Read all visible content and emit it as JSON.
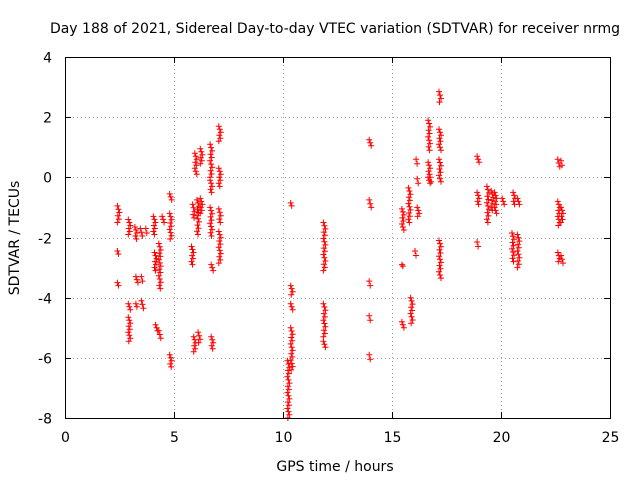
{
  "chart_data": {
    "type": "scatter",
    "title": "Day 188 of 2021, Sidereal Day-to-day VTEC variation (SDTVAR) for receiver nrmg",
    "xlabel": "GPS time / hours",
    "ylabel": "SDTVAR / TECUs",
    "xlim": [
      0,
      25
    ],
    "ylim": [
      -8,
      4
    ],
    "xticks": [
      "0",
      "5",
      "10",
      "15",
      "20",
      "25"
    ],
    "yticks": [
      "-8",
      "-6",
      "-4",
      "-2",
      "0",
      "2",
      "4"
    ],
    "xtick_values": [
      0,
      5,
      10,
      15,
      20,
      25
    ],
    "ytick_values": [
      -8,
      -6,
      -4,
      -2,
      0,
      2,
      4
    ],
    "grid": true,
    "marker": "plus",
    "color": "#ff0000",
    "segments": [
      {
        "x": 2.45,
        "y0": -1.5,
        "y1": -0.95
      },
      {
        "x": 2.45,
        "y0": -2.55,
        "y1": -2.45
      },
      {
        "x": 2.45,
        "y0": -3.6,
        "y1": -3.5
      },
      {
        "x": 2.95,
        "y0": -1.9,
        "y1": -1.4
      },
      {
        "x": 2.95,
        "y0": -4.4,
        "y1": -4.2
      },
      {
        "x": 2.95,
        "y0": -5.45,
        "y1": -4.65
      },
      {
        "x": 3.25,
        "y0": -2.05,
        "y1": -1.65
      },
      {
        "x": 3.3,
        "y0": -3.5,
        "y1": -3.3
      },
      {
        "x": 3.3,
        "y0": -4.3,
        "y1": -4.2
      },
      {
        "x": 3.5,
        "y0": -1.95,
        "y1": -1.7
      },
      {
        "x": 3.55,
        "y0": -3.45,
        "y1": -3.3
      },
      {
        "x": 3.55,
        "y0": -4.35,
        "y1": -4.1
      },
      {
        "x": 3.75,
        "y0": -1.85,
        "y1": -1.7
      },
      {
        "x": 4.1,
        "y0": -1.9,
        "y1": -1.3
      },
      {
        "x": 4.15,
        "y0": -3.1,
        "y1": -2.5
      },
      {
        "x": 4.2,
        "y0": -5.1,
        "y1": -4.9
      },
      {
        "x": 4.35,
        "y0": -3.7,
        "y1": -2.2
      },
      {
        "x": 4.35,
        "y0": -5.35,
        "y1": -5.1
      },
      {
        "x": 4.5,
        "y0": -1.5,
        "y1": -1.3
      },
      {
        "x": 4.85,
        "y0": -0.75,
        "y1": -0.55
      },
      {
        "x": 4.85,
        "y0": -2.05,
        "y1": -1.2
      },
      {
        "x": 4.85,
        "y0": -6.3,
        "y1": -5.9
      },
      {
        "x": 5.85,
        "y0": -2.9,
        "y1": -2.3
      },
      {
        "x": 5.9,
        "y0": -1.35,
        "y1": -0.9
      },
      {
        "x": 5.95,
        "y0": -5.8,
        "y1": -5.3
      },
      {
        "x": 6.0,
        "y0": 0.1,
        "y1": 0.8
      },
      {
        "x": 6.1,
        "y0": -1.9,
        "y1": -0.75
      },
      {
        "x": 6.15,
        "y0": -5.5,
        "y1": -5.15
      },
      {
        "x": 6.25,
        "y0": 0.45,
        "y1": 0.95
      },
      {
        "x": 6.25,
        "y0": -1.2,
        "y1": -0.7
      },
      {
        "x": 6.7,
        "y0": 0.0,
        "y1": 1.1
      },
      {
        "x": 6.7,
        "y0": -0.5,
        "y1": -0.1
      },
      {
        "x": 6.7,
        "y0": -1.95,
        "y1": -1.0
      },
      {
        "x": 6.75,
        "y0": -3.1,
        "y1": -2.9
      },
      {
        "x": 6.75,
        "y0": -5.7,
        "y1": -5.3
      },
      {
        "x": 7.1,
        "y0": 1.2,
        "y1": 1.7
      },
      {
        "x": 7.1,
        "y0": -0.3,
        "y1": 0.3
      },
      {
        "x": 7.1,
        "y0": -1.5,
        "y1": -1.05
      },
      {
        "x": 7.1,
        "y0": -2.85,
        "y1": -1.8
      },
      {
        "x": 10.25,
        "y0": -8.0,
        "y1": -6.1
      },
      {
        "x": 10.4,
        "y0": -0.95,
        "y1": -0.85
      },
      {
        "x": 10.4,
        "y0": -3.9,
        "y1": -3.6
      },
      {
        "x": 10.4,
        "y0": -4.4,
        "y1": -4.2
      },
      {
        "x": 10.4,
        "y0": -6.4,
        "y1": -5.0
      },
      {
        "x": 11.9,
        "y0": -3.1,
        "y1": -1.5
      },
      {
        "x": 11.9,
        "y0": -5.3,
        "y1": -4.2
      },
      {
        "x": 11.9,
        "y0": -5.65,
        "y1": -5.45
      },
      {
        "x": 14.0,
        "y0": 1.05,
        "y1": 1.25
      },
      {
        "x": 14.0,
        "y0": -1.0,
        "y1": -0.75
      },
      {
        "x": 14.0,
        "y0": -3.6,
        "y1": -3.45
      },
      {
        "x": 14.0,
        "y0": -4.75,
        "y1": -4.6
      },
      {
        "x": 14.0,
        "y0": -6.05,
        "y1": -5.9
      },
      {
        "x": 15.5,
        "y0": -1.75,
        "y1": -1.05
      },
      {
        "x": 15.5,
        "y0": -2.95,
        "y1": -2.9
      },
      {
        "x": 15.5,
        "y0": -5.0,
        "y1": -4.8
      },
      {
        "x": 15.8,
        "y0": -1.5,
        "y1": -0.35
      },
      {
        "x": 15.9,
        "y0": -4.85,
        "y1": -4.0
      },
      {
        "x": 16.1,
        "y0": -2.6,
        "y1": -2.45
      },
      {
        "x": 16.15,
        "y0": 0.45,
        "y1": 0.6
      },
      {
        "x": 16.2,
        "y0": -1.3,
        "y1": -1.0
      },
      {
        "x": 16.2,
        "y0": -0.2,
        "y1": -0.05
      },
      {
        "x": 16.7,
        "y0": -0.2,
        "y1": 0.5
      },
      {
        "x": 16.7,
        "y0": 0.9,
        "y1": 1.9
      },
      {
        "x": 16.8,
        "y0": -0.15,
        "y1": 0.0
      },
      {
        "x": 17.2,
        "y0": 2.5,
        "y1": 2.85
      },
      {
        "x": 17.2,
        "y0": 0.9,
        "y1": 1.6
      },
      {
        "x": 17.2,
        "y0": -0.15,
        "y1": 0.6
      },
      {
        "x": 17.2,
        "y0": -3.35,
        "y1": -2.1
      },
      {
        "x": 18.95,
        "y0": 0.5,
        "y1": 0.7
      },
      {
        "x": 18.95,
        "y0": -0.9,
        "y1": -0.5
      },
      {
        "x": 18.95,
        "y0": -2.3,
        "y1": -2.15
      },
      {
        "x": 19.4,
        "y0": -1.5,
        "y1": -0.3
      },
      {
        "x": 19.6,
        "y0": -1.1,
        "y1": -0.45
      },
      {
        "x": 19.75,
        "y0": -1.2,
        "y1": -0.5
      },
      {
        "x": 20.1,
        "y0": -0.9,
        "y1": -0.7
      },
      {
        "x": 20.55,
        "y0": -2.8,
        "y1": -1.85
      },
      {
        "x": 20.6,
        "y0": -0.9,
        "y1": -0.5
      },
      {
        "x": 20.8,
        "y0": -3.0,
        "y1": -1.9
      },
      {
        "x": 20.8,
        "y0": -0.9,
        "y1": -0.7
      },
      {
        "x": 22.65,
        "y0": 0.35,
        "y1": 0.6
      },
      {
        "x": 22.65,
        "y0": -1.6,
        "y1": -0.8
      },
      {
        "x": 22.65,
        "y0": -2.8,
        "y1": -2.5
      },
      {
        "x": 22.8,
        "y0": 0.4,
        "y1": 0.55
      },
      {
        "x": 22.8,
        "y0": -1.5,
        "y1": -1.0
      },
      {
        "x": 22.8,
        "y0": -2.85,
        "y1": -2.6
      }
    ]
  }
}
